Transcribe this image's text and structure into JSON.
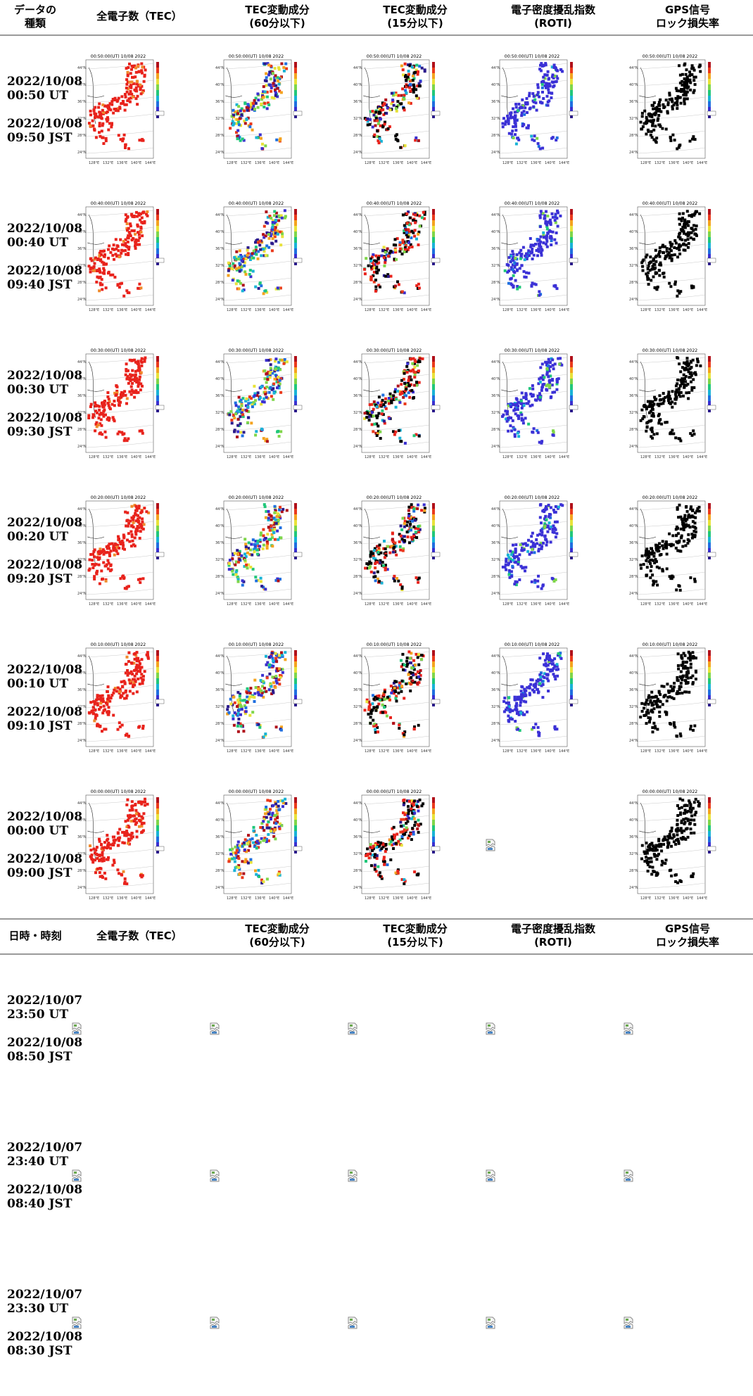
{
  "headers_top": [
    "データの\n種類",
    "全電子数（TEC）",
    "TEC変動成分\n(60分以下)",
    "TEC変動成分\n(15分以下)",
    "電子密度擾乱指数\n(ROTI)",
    "GPS信号\nロック損失率"
  ],
  "headers_mid": [
    "日時・時刻",
    "全電子数（TEC）",
    "TEC変動成分\n(60分以下)",
    "TEC変動成分\n(15分以下)",
    "電子密度擾乱指数\n(ROTI)",
    "GPS信号\nロック損失率"
  ],
  "rows_with_maps": [
    {
      "utc_date": "2022/10/08",
      "utc_time": "00:50 UT",
      "jst_date": "2022/10/08",
      "jst_time": "09:50 JST",
      "map_title": "00:50:00(UT) 10/08 2022"
    },
    {
      "utc_date": "2022/10/08",
      "utc_time": "00:40 UT",
      "jst_date": "2022/10/08",
      "jst_time": "09:40 JST",
      "map_title": "00:40:00(UT) 10/08 2022"
    },
    {
      "utc_date": "2022/10/08",
      "utc_time": "00:30 UT",
      "jst_date": "2022/10/08",
      "jst_time": "09:30 JST",
      "map_title": "00:30:00(UT) 10/08 2022"
    },
    {
      "utc_date": "2022/10/08",
      "utc_time": "00:20 UT",
      "jst_date": "2022/10/08",
      "jst_time": "09:20 JST",
      "map_title": "00:20:00(UT) 10/08 2022"
    },
    {
      "utc_date": "2022/10/08",
      "utc_time": "00:10 UT",
      "jst_date": "2022/10/08",
      "jst_time": "09:10 JST",
      "map_title": "00:10:00(UT) 10/08 2022"
    },
    {
      "utc_date": "2022/10/08",
      "utc_time": "00:00 UT",
      "jst_date": "2022/10/08",
      "jst_time": "09:00 JST",
      "map_title": "00:00:00(UT) 10/08 2022"
    }
  ],
  "rows_broken": [
    {
      "utc_date": "2022/10/07",
      "utc_time": "23:50 UT",
      "jst_date": "2022/10/08",
      "jst_time": "08:50 JST"
    },
    {
      "utc_date": "2022/10/07",
      "utc_time": "23:40 UT",
      "jst_date": "2022/10/08",
      "jst_time": "08:40 JST"
    },
    {
      "utc_date": "2022/10/07",
      "utc_time": "23:30 UT",
      "jst_date": "2022/10/08",
      "jst_time": "08:30 JST"
    }
  ],
  "map_axis": {
    "lat_ticks": [
      "44°N",
      "40°N",
      "36°N",
      "32°N",
      "28°N",
      "24°N"
    ],
    "lon_ticks": [
      "128°E",
      "132°E",
      "136°E",
      "140°E",
      "144°E"
    ]
  },
  "map_types": [
    "tec",
    "dtec60",
    "dtec15",
    "roti",
    "lol"
  ],
  "missing_images": [
    [
      5,
      "roti"
    ]
  ],
  "palette": {
    "tec_fill": "#e8231c",
    "lol_fill": "#000000",
    "roti_fill": "#3b31d6",
    "header_rule": "#9a9a9a"
  },
  "icons": {
    "broken_image": "broken-image-icon"
  }
}
